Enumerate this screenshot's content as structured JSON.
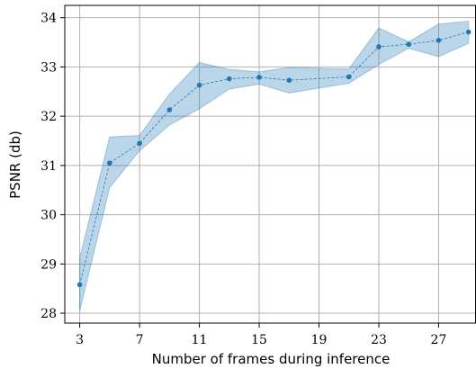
{
  "chart_data": {
    "type": "line",
    "title": "",
    "xlabel": "Number of frames during inference",
    "ylabel": "PSNR (db)",
    "xlim": [
      2.0,
      29.5
    ],
    "ylim": [
      27.8,
      34.25
    ],
    "xticks": [
      3,
      7,
      11,
      15,
      19,
      23,
      27
    ],
    "yticks": [
      28,
      29,
      30,
      31,
      32,
      33,
      34
    ],
    "grid": true,
    "series": [
      {
        "x": [
          3,
          5,
          7,
          9,
          11,
          13,
          15,
          17,
          21,
          23,
          25,
          27,
          29
        ],
        "y": [
          28.58,
          31.05,
          31.45,
          32.13,
          32.63,
          32.76,
          32.79,
          32.73,
          32.8,
          33.41,
          33.46,
          33.54,
          33.71
        ],
        "lower": [
          28.05,
          30.55,
          31.3,
          31.82,
          32.15,
          32.55,
          32.65,
          32.47,
          32.67,
          33.05,
          33.38,
          33.21,
          33.48
        ],
        "upper": [
          29.12,
          31.58,
          31.61,
          32.45,
          33.09,
          32.95,
          32.9,
          32.99,
          32.96,
          33.79,
          33.51,
          33.87,
          33.93
        ],
        "color": "#1f77b4",
        "band_color": "#1f77b4",
        "line_style": "dashed",
        "marker": "circle"
      }
    ]
  }
}
